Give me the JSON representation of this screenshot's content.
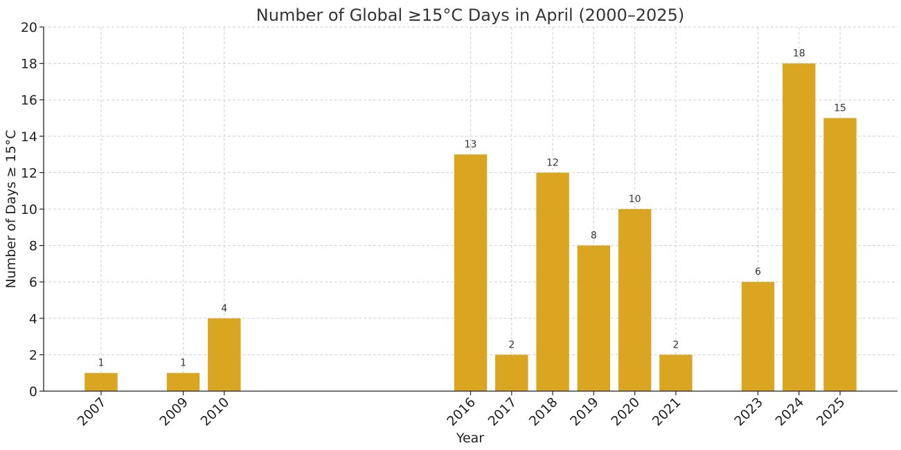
{
  "chart_data": {
    "type": "bar",
    "title": "Number of Global ≥15°C Days in April (2000–2025)",
    "xlabel": "Year",
    "ylabel": "Number of Days ≥ 15°C",
    "x_range": [
      2005.6,
      2026.4
    ],
    "ylim": [
      0,
      20
    ],
    "yticks": [
      0,
      2,
      4,
      6,
      8,
      10,
      12,
      14,
      16,
      18,
      20
    ],
    "grid": true,
    "bar_color": "#DAA520",
    "categories": [
      "2007",
      "2009",
      "2010",
      "2016",
      "2017",
      "2018",
      "2019",
      "2020",
      "2021",
      "2023",
      "2024",
      "2025"
    ],
    "values": [
      1,
      1,
      4,
      13,
      2,
      12,
      8,
      10,
      2,
      6,
      18,
      15
    ]
  }
}
